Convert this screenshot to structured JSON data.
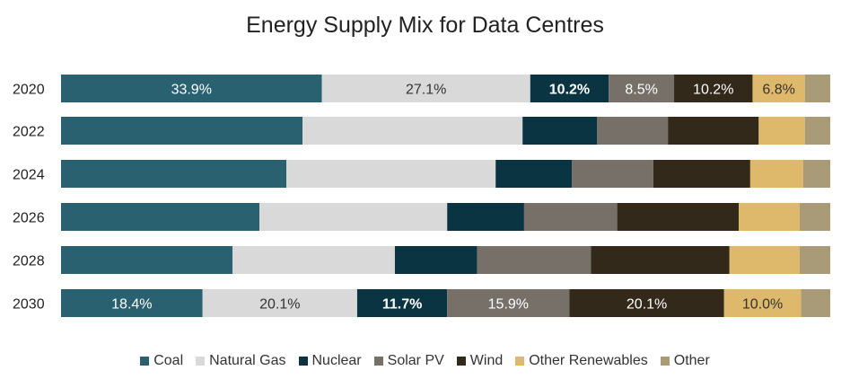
{
  "chart_data": {
    "type": "bar",
    "orientation": "horizontal",
    "stacked": "percent",
    "title": "Energy Supply Mix for Data Centres",
    "categories": [
      "2020",
      "2022",
      "2024",
      "2026",
      "2028",
      "2030"
    ],
    "series": [
      {
        "name": "Coal",
        "color": "#2a6171",
        "values": [
          33.9,
          31.4,
          29.3,
          25.8,
          22.3,
          18.4
        ],
        "labels": [
          "33.9%",
          "",
          "",
          "",
          "",
          "18.4%"
        ],
        "bold": false,
        "label_color": "#ffffff"
      },
      {
        "name": "Natural Gas",
        "color": "#d9d9d9",
        "values": [
          27.1,
          28.6,
          27.2,
          24.4,
          21.1,
          20.1
        ],
        "labels": [
          "27.1%",
          "",
          "",
          "",
          "",
          "20.1%"
        ],
        "bold": false,
        "label_color": "#333333"
      },
      {
        "name": "Nuclear",
        "color": "#0b3443",
        "values": [
          10.2,
          9.7,
          9.9,
          10.0,
          10.7,
          11.7
        ],
        "labels": [
          "10.2%",
          "",
          "",
          "",
          "",
          "11.7%"
        ],
        "bold": true,
        "label_color": "#ffffff"
      },
      {
        "name": "Solar PV",
        "color": "#767069",
        "values": [
          8.5,
          9.2,
          10.6,
          12.1,
          14.8,
          15.9
        ],
        "labels": [
          "8.5%",
          "",
          "",
          "",
          "",
          "15.9%"
        ],
        "bold": false,
        "label_color": "#ffffff"
      },
      {
        "name": "Wind",
        "color": "#32291b",
        "values": [
          10.2,
          11.8,
          12.6,
          15.8,
          18.0,
          20.1
        ],
        "labels": [
          "10.2%",
          "",
          "",
          "",
          "",
          "20.1%"
        ],
        "bold": false,
        "label_color": "#ffffff"
      },
      {
        "name": "Other Renewables",
        "color": "#dfb96b",
        "values": [
          6.8,
          6.0,
          6.9,
          7.9,
          9.1,
          10.0
        ],
        "labels": [
          "6.8%",
          "",
          "",
          "",
          "",
          "10.0%"
        ],
        "bold": false,
        "label_color": "#333333"
      },
      {
        "name": "Other",
        "color": "#a99a78",
        "values": [
          3.3,
          3.3,
          3.5,
          4.0,
          4.0,
          3.8
        ],
        "labels": [
          "",
          "",
          "",
          "",
          "",
          ""
        ],
        "bold": false,
        "label_color": "#333333"
      }
    ],
    "xlim": [
      0,
      100
    ],
    "grid": false,
    "legend_position": "bottom"
  }
}
